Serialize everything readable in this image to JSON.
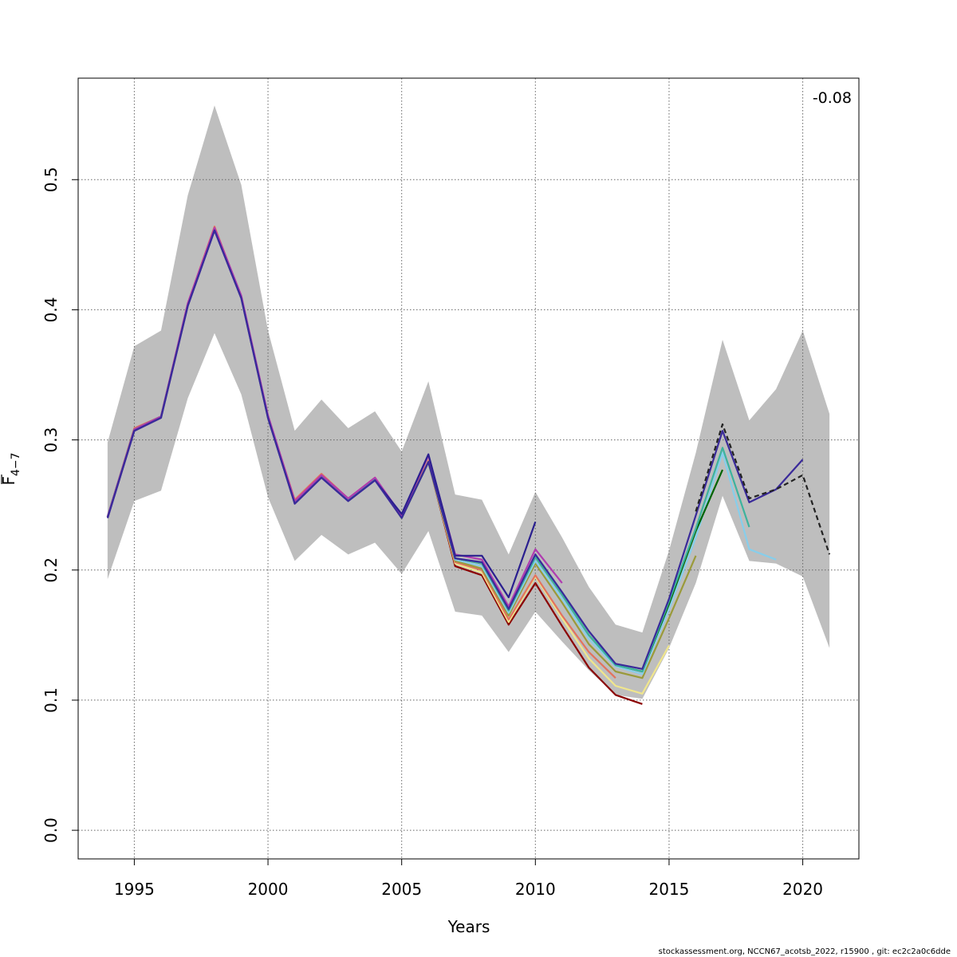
{
  "chart_data": {
    "type": "line",
    "title": "",
    "xlabel": "Years",
    "ylabel_main": "F",
    "ylabel_sub": "4−7",
    "annotation": "-0.08",
    "footer": "stockassessment.org, NCCN67_acotsb_2022, r15900 , git: ec2c2a0c6dde",
    "xlim": [
      1992.9,
      2022.1
    ],
    "ylim": [
      -0.022,
      0.578
    ],
    "xticks": [
      1995,
      2000,
      2005,
      2010,
      2015,
      2020
    ],
    "yticks": [
      0.0,
      0.1,
      0.2,
      0.3,
      0.4,
      0.5
    ],
    "ytick_labels": [
      "0.0",
      "0.1",
      "0.2",
      "0.3",
      "0.4",
      "0.5"
    ],
    "grid": true,
    "band": {
      "color": "#bebebe",
      "x": [
        1994,
        1995,
        1996,
        1997,
        1998,
        1999,
        2000,
        2001,
        2002,
        2003,
        2004,
        2005,
        2006,
        2007,
        2008,
        2009,
        2010,
        2011,
        2012,
        2013,
        2014,
        2015,
        2016,
        2017,
        2018,
        2019,
        2020,
        2021
      ],
      "upper": [
        0.298,
        0.372,
        0.384,
        0.488,
        0.557,
        0.496,
        0.384,
        0.307,
        0.331,
        0.309,
        0.322,
        0.291,
        0.345,
        0.258,
        0.254,
        0.212,
        0.26,
        0.225,
        0.187,
        0.158,
        0.152,
        0.215,
        0.29,
        0.377,
        0.315,
        0.339,
        0.384,
        0.32
      ],
      "lower": [
        0.193,
        0.253,
        0.261,
        0.332,
        0.382,
        0.335,
        0.256,
        0.207,
        0.227,
        0.212,
        0.221,
        0.197,
        0.23,
        0.168,
        0.165,
        0.137,
        0.168,
        0.145,
        0.123,
        0.104,
        0.101,
        0.14,
        0.19,
        0.257,
        0.207,
        0.205,
        0.195,
        0.14
      ]
    },
    "series": [
      {
        "color": "#8b0000",
        "dashed": false,
        "x": [
          1994,
          1995,
          1996,
          1997,
          1998,
          1999,
          2000,
          2001,
          2002,
          2003,
          2004,
          2005,
          2006,
          2007,
          2008,
          2009,
          2010,
          2011,
          2012,
          2013,
          2014
        ],
        "values": [
          0.241,
          0.308,
          0.318,
          0.404,
          0.462,
          0.41,
          0.318,
          0.252,
          0.272,
          0.254,
          0.27,
          0.24,
          0.283,
          0.203,
          0.196,
          0.158,
          0.19,
          0.157,
          0.125,
          0.104,
          0.097
        ]
      },
      {
        "color": "#f0e68c",
        "dashed": false,
        "x": [
          1994,
          1995,
          1996,
          1997,
          1998,
          1999,
          2000,
          2001,
          2002,
          2003,
          2004,
          2005,
          2006,
          2007,
          2008,
          2009,
          2010,
          2011,
          2012,
          2013,
          2014,
          2015
        ],
        "values": [
          0.241,
          0.308,
          0.318,
          0.404,
          0.462,
          0.41,
          0.318,
          0.252,
          0.272,
          0.254,
          0.27,
          0.24,
          0.283,
          0.205,
          0.198,
          0.16,
          0.195,
          0.163,
          0.132,
          0.111,
          0.105,
          0.142
        ]
      },
      {
        "color": "#e3735e",
        "dashed": false,
        "x": [
          1994,
          1995,
          1996,
          1997,
          1998,
          1999,
          2000,
          2001,
          2002,
          2003,
          2004,
          2005,
          2006,
          2007,
          2008,
          2009,
          2010,
          2011,
          2012,
          2013
        ],
        "values": [
          0.241,
          0.309,
          0.318,
          0.405,
          0.464,
          0.41,
          0.318,
          0.254,
          0.274,
          0.255,
          0.271,
          0.241,
          0.284,
          0.206,
          0.2,
          0.162,
          0.196,
          0.165,
          0.137,
          0.117
        ]
      },
      {
        "color": "#9a9a3a",
        "dashed": false,
        "x": [
          1994,
          1995,
          1996,
          1997,
          1998,
          1999,
          2000,
          2001,
          2002,
          2003,
          2004,
          2005,
          2006,
          2007,
          2008,
          2009,
          2010,
          2011,
          2012,
          2013,
          2014,
          2015,
          2016
        ],
        "values": [
          0.241,
          0.308,
          0.318,
          0.404,
          0.462,
          0.41,
          0.318,
          0.252,
          0.272,
          0.254,
          0.27,
          0.24,
          0.283,
          0.207,
          0.201,
          0.165,
          0.205,
          0.175,
          0.143,
          0.122,
          0.117,
          0.163,
          0.211
        ]
      },
      {
        "color": "#87ceeb",
        "dashed": false,
        "x": [
          1994,
          1995,
          1996,
          1997,
          1998,
          1999,
          2000,
          2001,
          2002,
          2003,
          2004,
          2005,
          2006,
          2007,
          2008,
          2009,
          2010,
          2011,
          2012,
          2013,
          2014,
          2015,
          2016,
          2017,
          2018,
          2019
        ],
        "values": [
          0.241,
          0.308,
          0.318,
          0.404,
          0.462,
          0.41,
          0.318,
          0.252,
          0.272,
          0.254,
          0.27,
          0.24,
          0.283,
          0.208,
          0.203,
          0.167,
          0.207,
          0.178,
          0.147,
          0.126,
          0.12,
          0.17,
          0.225,
          0.29,
          0.216,
          0.208
        ]
      },
      {
        "color": "#006400",
        "dashed": false,
        "x": [
          1994,
          1995,
          1996,
          1997,
          1998,
          1999,
          2000,
          2001,
          2002,
          2003,
          2004,
          2005,
          2006,
          2007,
          2008,
          2009,
          2010,
          2011,
          2012,
          2013,
          2014,
          2015,
          2016,
          2017
        ],
        "values": [
          0.241,
          0.308,
          0.318,
          0.404,
          0.462,
          0.41,
          0.318,
          0.252,
          0.272,
          0.254,
          0.27,
          0.24,
          0.283,
          0.209,
          0.205,
          0.169,
          0.21,
          0.181,
          0.15,
          0.127,
          0.122,
          0.174,
          0.23,
          0.277
        ]
      },
      {
        "color": "#3cb39e",
        "dashed": false,
        "x": [
          1994,
          1995,
          1996,
          1997,
          1998,
          1999,
          2000,
          2001,
          2002,
          2003,
          2004,
          2005,
          2006,
          2007,
          2008,
          2009,
          2010,
          2011,
          2012,
          2013,
          2014,
          2015,
          2016,
          2017,
          2018
        ],
        "values": [
          0.241,
          0.308,
          0.318,
          0.404,
          0.462,
          0.41,
          0.318,
          0.252,
          0.272,
          0.254,
          0.27,
          0.24,
          0.283,
          0.209,
          0.205,
          0.169,
          0.21,
          0.181,
          0.15,
          0.127,
          0.122,
          0.176,
          0.232,
          0.294,
          0.233
        ]
      },
      {
        "color": "#b03bb0",
        "dashed": false,
        "x": [
          1994,
          1995,
          1996,
          1997,
          1998,
          1999,
          2000,
          2001,
          2002,
          2003,
          2004,
          2005,
          2006,
          2007,
          2008,
          2009,
          2010,
          2011
        ],
        "values": [
          0.241,
          0.308,
          0.318,
          0.405,
          0.463,
          0.411,
          0.319,
          0.253,
          0.273,
          0.255,
          0.271,
          0.242,
          0.288,
          0.212,
          0.208,
          0.172,
          0.216,
          0.19
        ]
      },
      {
        "color": "#2a1f8f",
        "dashed": false,
        "x": [
          1994,
          1995,
          1996,
          1997,
          1998,
          1999,
          2000,
          2001,
          2002,
          2003,
          2004,
          2005,
          2006,
          2007,
          2008,
          2009,
          2010
        ],
        "values": [
          0.24,
          0.307,
          0.317,
          0.403,
          0.461,
          0.409,
          0.317,
          0.251,
          0.271,
          0.253,
          0.269,
          0.243,
          0.289,
          0.211,
          0.211,
          0.179,
          0.237
        ]
      },
      {
        "color": "#3a2a9a",
        "dashed": false,
        "x": [
          1994,
          1995,
          1996,
          1997,
          1998,
          1999,
          2000,
          2001,
          2002,
          2003,
          2004,
          2005,
          2006,
          2007,
          2008,
          2009,
          2010,
          2011,
          2012,
          2013,
          2014,
          2015,
          2016,
          2017,
          2018,
          2019,
          2020
        ],
        "values": [
          0.24,
          0.307,
          0.317,
          0.403,
          0.461,
          0.409,
          0.317,
          0.251,
          0.271,
          0.253,
          0.269,
          0.24,
          0.283,
          0.209,
          0.206,
          0.17,
          0.212,
          0.183,
          0.153,
          0.128,
          0.124,
          0.178,
          0.242,
          0.307,
          0.252,
          0.262,
          0.285
        ]
      },
      {
        "color": "#222222",
        "dashed": true,
        "x": [
          2016,
          2017,
          2018,
          2019,
          2020,
          2021
        ],
        "values": [
          0.245,
          0.312,
          0.255,
          0.262,
          0.273,
          0.212
        ]
      }
    ]
  }
}
